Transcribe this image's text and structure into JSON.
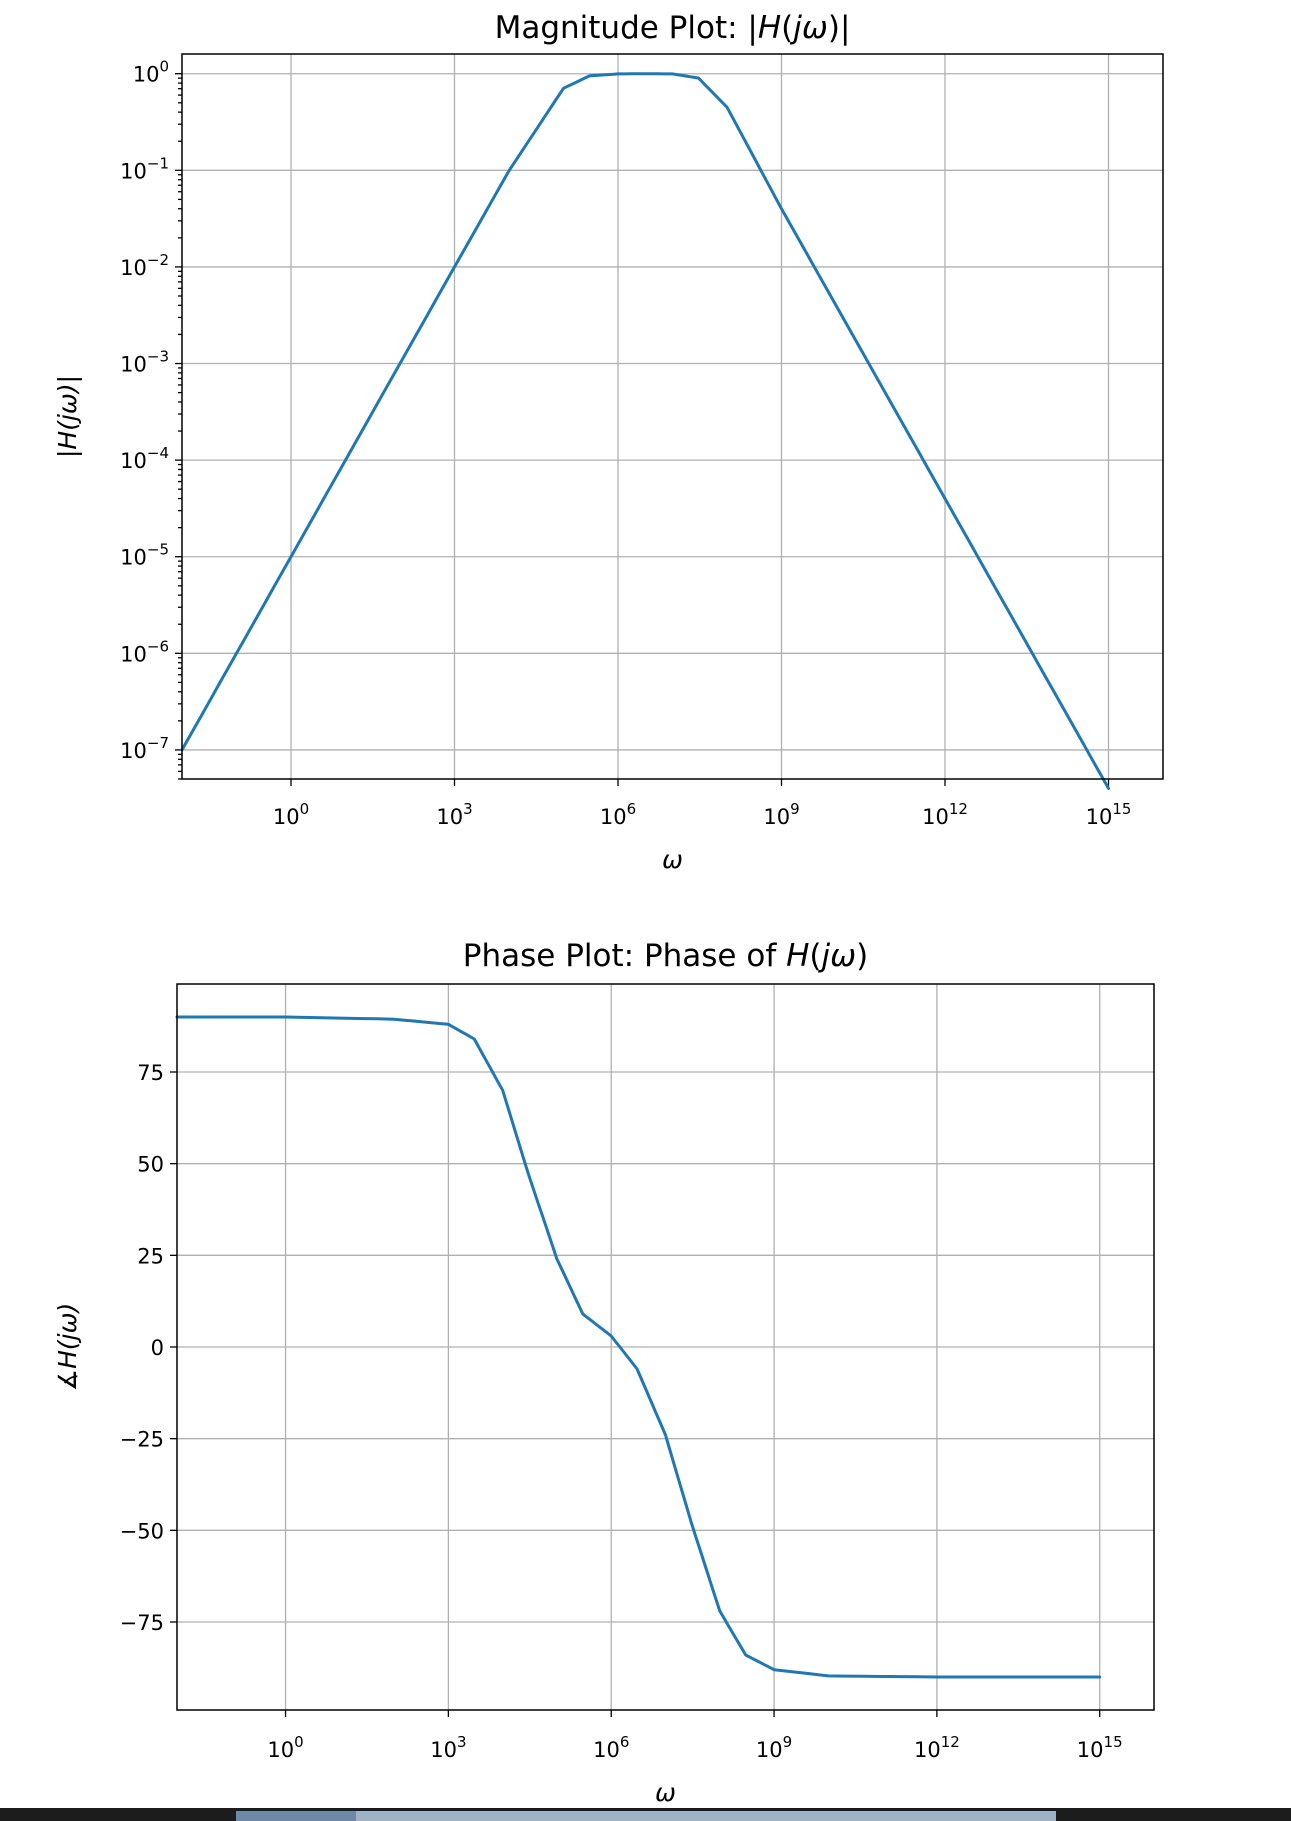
{
  "chart_data": [
    {
      "type": "line",
      "title": "Magnitude Plot: |H(jω)|",
      "xlabel": "ω",
      "ylabel": "|H(jω)|",
      "xscale": "log",
      "yscale": "log",
      "xlim": [
        0.01,
        1e+16
      ],
      "ylim": [
        5e-08,
        1.6
      ],
      "grid": true,
      "x_ticks": [
        {
          "value": 1,
          "base": "10",
          "exp": "0"
        },
        {
          "value": 1000.0,
          "base": "10",
          "exp": "3"
        },
        {
          "value": 1000000.0,
          "base": "10",
          "exp": "6"
        },
        {
          "value": 1000000000.0,
          "base": "10",
          "exp": "9"
        },
        {
          "value": 1000000000000.0,
          "base": "10",
          "exp": "12"
        },
        {
          "value": 1000000000000000.0,
          "base": "10",
          "exp": "15"
        }
      ],
      "y_ticks": [
        {
          "value": 1,
          "base": "10",
          "exp": "0"
        },
        {
          "value": 0.1,
          "base": "10",
          "exp": "−1"
        },
        {
          "value": 0.01,
          "base": "10",
          "exp": "−2"
        },
        {
          "value": 0.001,
          "base": "10",
          "exp": "−3"
        },
        {
          "value": 0.0001,
          "base": "10",
          "exp": "−4"
        },
        {
          "value": 1e-05,
          "base": "10",
          "exp": "−5"
        },
        {
          "value": 1e-06,
          "base": "10",
          "exp": "−6"
        },
        {
          "value": 1e-07,
          "base": "10",
          "exp": "−7"
        }
      ],
      "series": [
        {
          "color": "#1f77b4",
          "x": [
            0.01,
            0.1,
            1,
            10.0,
            100.0,
            1000.0,
            10000.0,
            100000.0,
            300000.0,
            1000000.0,
            3000000.0,
            10000000.0,
            30000000.0,
            100000000.0,
            1000000000.0,
            10000000000.0,
            100000000000.0,
            1000000000000.0,
            10000000000000.0,
            100000000000000.0,
            1000000000000000.0
          ],
          "y": [
            1e-07,
            1e-06,
            1e-05,
            0.0001,
            0.001,
            0.01,
            0.099,
            0.707,
            0.95,
            0.995,
            1.0,
            0.995,
            0.9,
            0.45,
            0.04,
            0.004,
            0.0004,
            4e-05,
            4e-06,
            4e-07,
            4e-08
          ]
        }
      ]
    },
    {
      "type": "line",
      "title": "Phase Plot: Phase of H(jω)",
      "xlabel": "ω",
      "ylabel": "∡H(jω)",
      "xscale": "log",
      "yscale": "linear",
      "xlim": [
        0.01,
        1e+16
      ],
      "ylim": [
        -99,
        99
      ],
      "grid": true,
      "x_ticks": [
        {
          "value": 1,
          "base": "10",
          "exp": "0"
        },
        {
          "value": 1000.0,
          "base": "10",
          "exp": "3"
        },
        {
          "value": 1000000.0,
          "base": "10",
          "exp": "6"
        },
        {
          "value": 1000000000.0,
          "base": "10",
          "exp": "9"
        },
        {
          "value": 1000000000000.0,
          "base": "10",
          "exp": "12"
        },
        {
          "value": 1000000000000000.0,
          "base": "10",
          "exp": "15"
        }
      ],
      "y_ticks": [
        {
          "value": 75,
          "label": "75"
        },
        {
          "value": 50,
          "label": "50"
        },
        {
          "value": 25,
          "label": "25"
        },
        {
          "value": 0,
          "label": "0"
        },
        {
          "value": -25,
          "label": "−25"
        },
        {
          "value": -50,
          "label": "−50"
        },
        {
          "value": -75,
          "label": "−75"
        }
      ],
      "series": [
        {
          "color": "#1f77b4",
          "x": [
            0.01,
            1,
            100.0,
            1000.0,
            3000.0,
            10000.0,
            30000.0,
            100000.0,
            300000.0,
            1000000.0,
            3000000.0,
            10000000.0,
            30000000.0,
            100000000.0,
            300000000.0,
            1000000000.0,
            10000000000.0,
            1000000000000.0,
            1000000000000000.0
          ],
          "y": [
            90,
            90,
            89.4,
            88,
            84,
            70,
            47,
            24,
            9,
            3,
            -6,
            -24,
            -48,
            -72,
            -84,
            -88,
            -89.7,
            -90,
            -90
          ]
        }
      ]
    }
  ]
}
